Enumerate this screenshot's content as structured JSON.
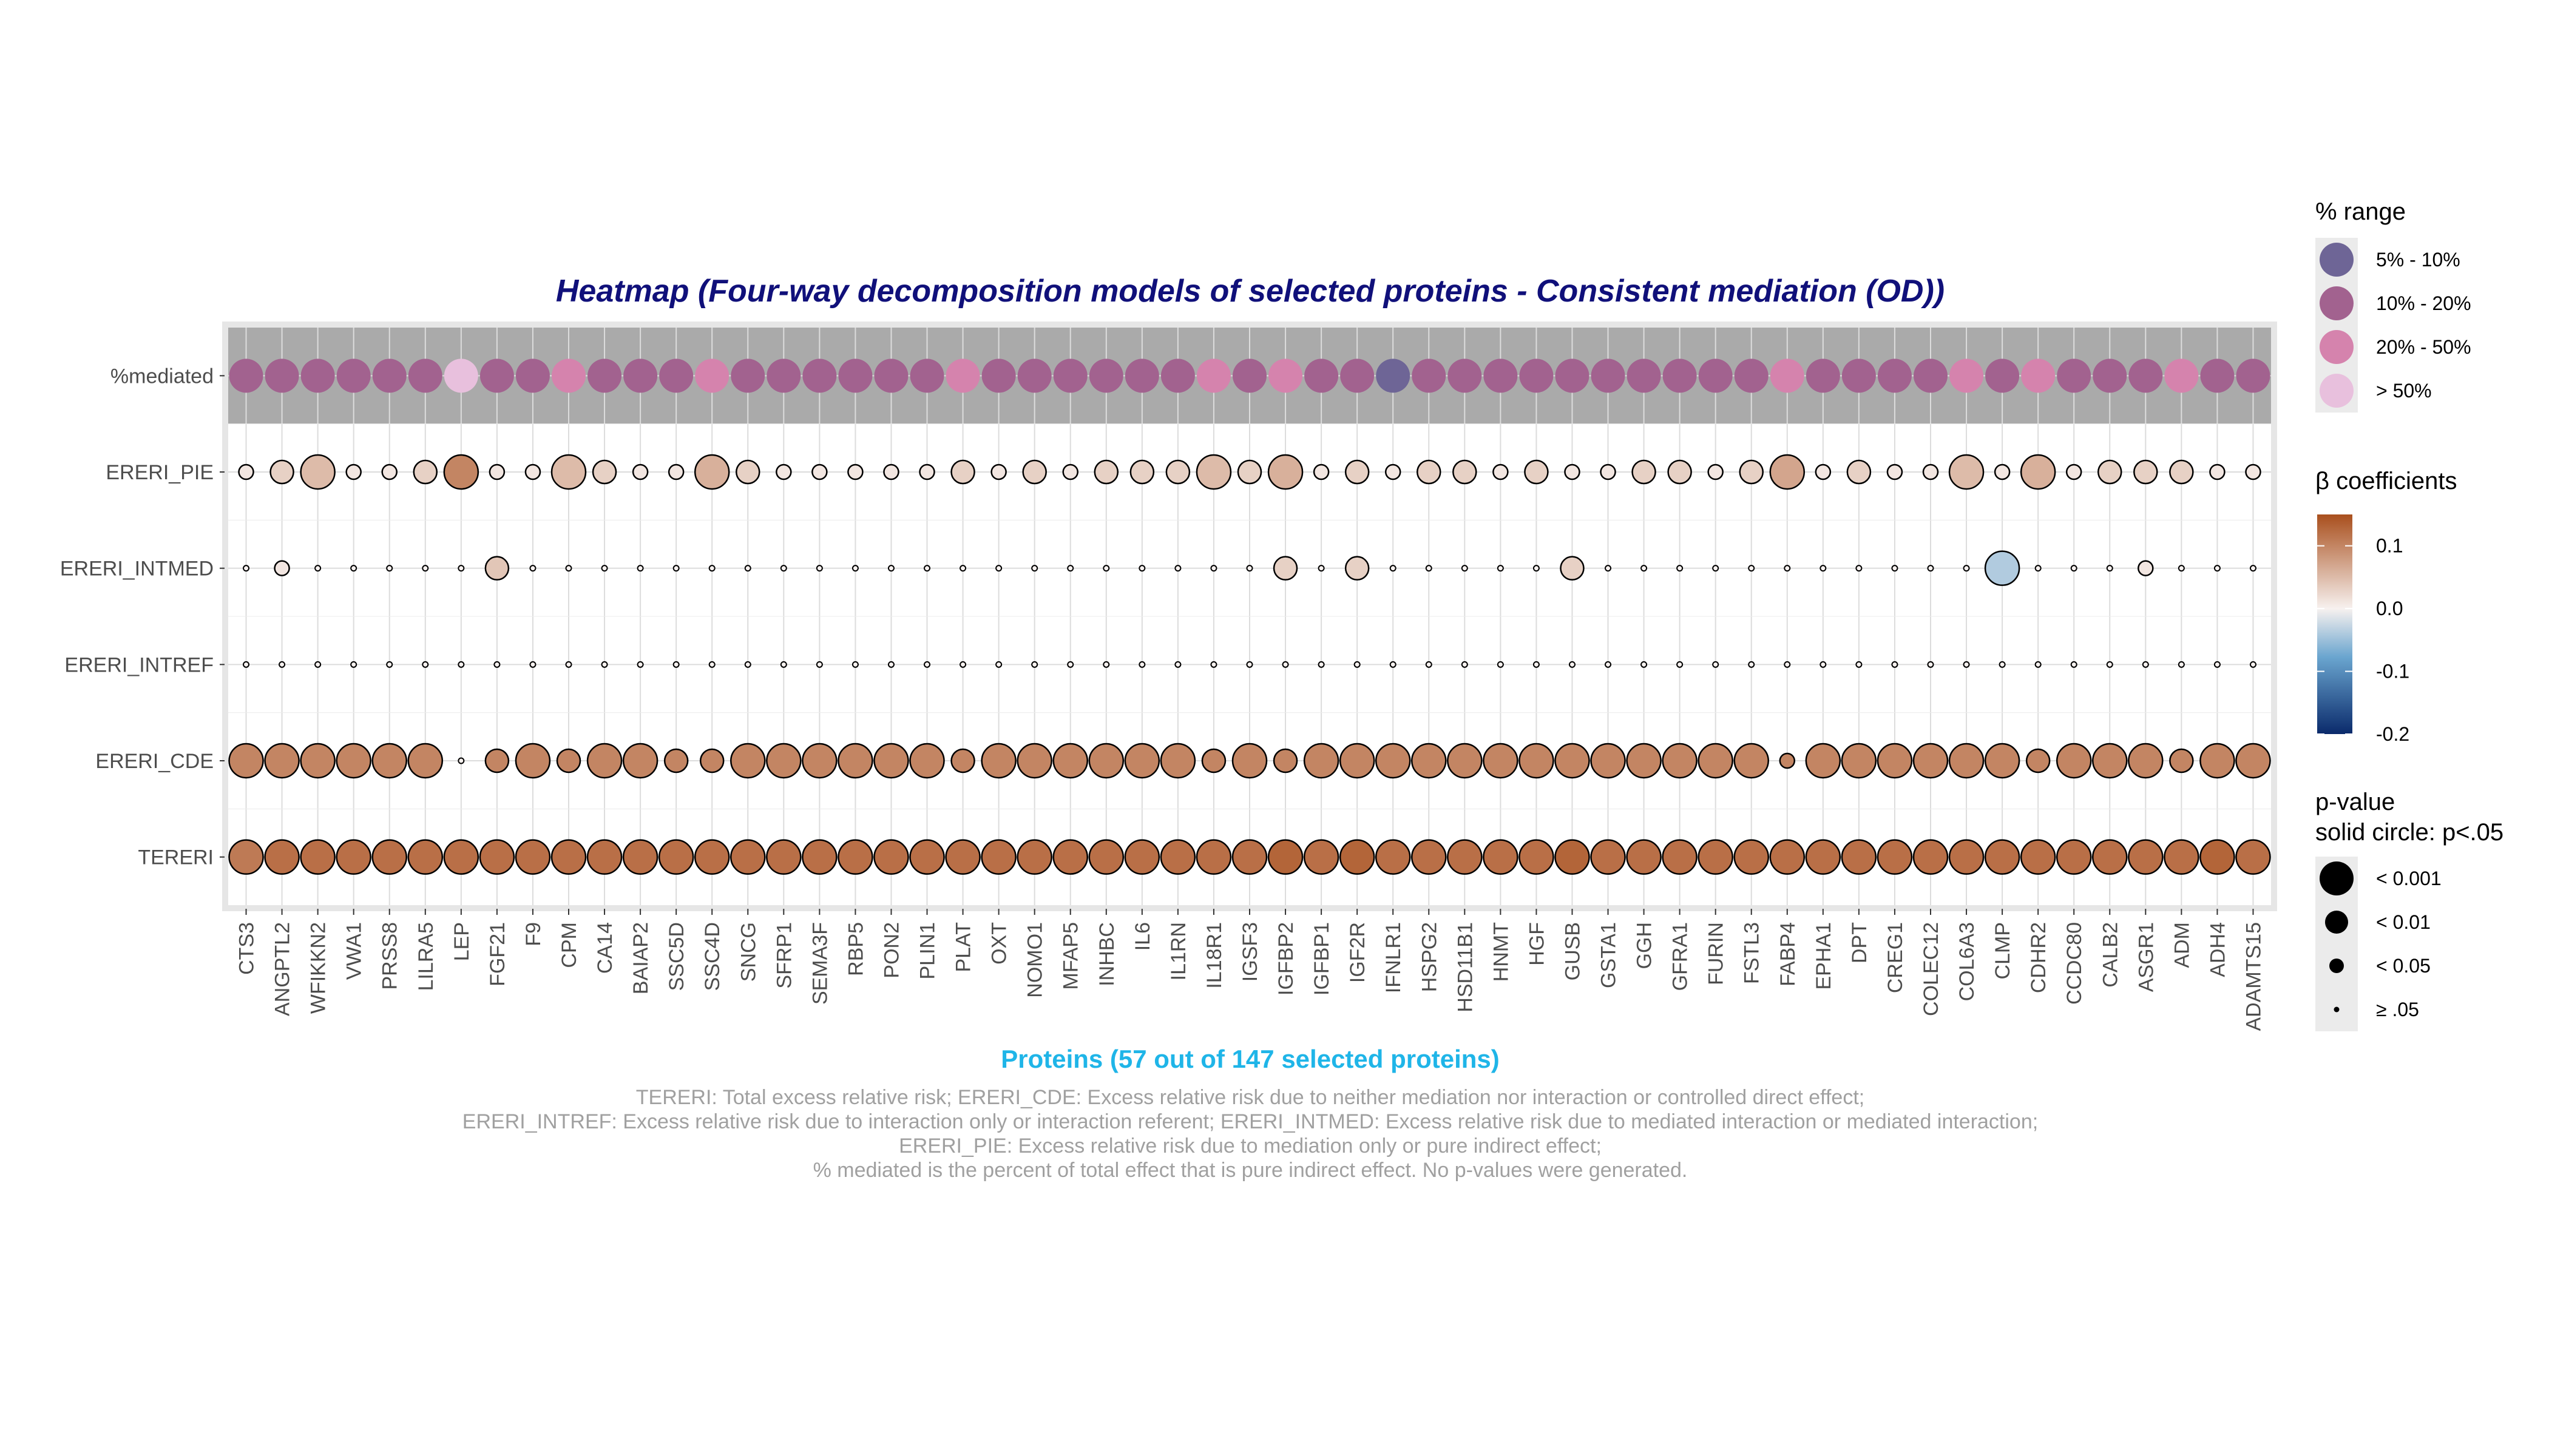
{
  "chart_data": {
    "type": "heatmap",
    "title": "Heatmap (Four-way decomposition models of selected proteins - Consistent mediation (OD))",
    "xlabel": "Proteins (57 out of 147 selected proteins)",
    "caption": [
      "TERERI: Total excess relative risk; ERERI_CDE: Excess relative risk due to neither mediation nor interaction or controlled direct effect;",
      "ERERI_INTREF: Excess relative risk due to interaction only or interaction referent; ERERI_INTMED: Excess relative risk due to mediated interaction or mediated interaction;",
      "ERERI_PIE: Excess relative risk due to mediation only or pure indirect effect;",
      "% mediated is the percent of total effect that is pure indirect effect. No p-values were generated."
    ],
    "rows": [
      "%mediated",
      "ERERI_PIE",
      "ERERI_INTMED",
      "ERERI_INTREF",
      "ERERI_CDE",
      "TERERI"
    ],
    "proteins": [
      "CTS3",
      "ANGPTL2",
      "WFIKKN2",
      "VWA1",
      "PRSS8",
      "LILRA5",
      "LEP",
      "FGF21",
      "F9",
      "CPM",
      "CA14",
      "BAIAP2",
      "SSC5D",
      "SSC4D",
      "SNCG",
      "SFRP1",
      "SEMA3F",
      "RBP5",
      "PON2",
      "PLIN1",
      "PLAT",
      "OXT",
      "NOMO1",
      "MFAP5",
      "INHBC",
      "IL6",
      "IL1RN",
      "IL18R1",
      "IGSF3",
      "IGFBP2",
      "IGFBP1",
      "IGF2R",
      "IFNLR1",
      "HSPG2",
      "HSD11B1",
      "HNMT",
      "HGF",
      "GUSB",
      "GSTA1",
      "GGH",
      "GFRA1",
      "FURIN",
      "FSTL3",
      "FABP4",
      "EPHA1",
      "DPT",
      "CREG1",
      "COLEC12",
      "COL6A3",
      "CLMP",
      "CDHR2",
      "CCDC80",
      "CALB2",
      "ASGR1",
      "ADM",
      "ADH4",
      "ADAMTS15"
    ],
    "pct_mediated_range": [
      "10% - 20%",
      "10% - 20%",
      "10% - 20%",
      "10% - 20%",
      "10% - 20%",
      "10% - 20%",
      "> 50%",
      "10% - 20%",
      "10% - 20%",
      "20% - 50%",
      "10% - 20%",
      "10% - 20%",
      "10% - 20%",
      "20% - 50%",
      "10% - 20%",
      "10% - 20%",
      "10% - 20%",
      "10% - 20%",
      "10% - 20%",
      "10% - 20%",
      "20% - 50%",
      "10% - 20%",
      "10% - 20%",
      "10% - 20%",
      "10% - 20%",
      "10% - 20%",
      "10% - 20%",
      "20% - 50%",
      "10% - 20%",
      "20% - 50%",
      "10% - 20%",
      "10% - 20%",
      "5% - 10%",
      "10% - 20%",
      "10% - 20%",
      "10% - 20%",
      "10% - 20%",
      "10% - 20%",
      "10% - 20%",
      "10% - 20%",
      "10% - 20%",
      "10% - 20%",
      "10% - 20%",
      "20% - 50%",
      "10% - 20%",
      "10% - 20%",
      "10% - 20%",
      "10% - 20%",
      "20% - 50%",
      "10% - 20%",
      "20% - 50%",
      "10% - 20%",
      "10% - 20%",
      "10% - 20%",
      "20% - 50%",
      "10% - 20%",
      "10% - 20%"
    ],
    "beta": {
      "ERERI_PIE": [
        0.01,
        0.03,
        0.05,
        0.01,
        0.01,
        0.03,
        0.1,
        0.01,
        0.01,
        0.05,
        0.03,
        0.01,
        0.01,
        0.06,
        0.03,
        0.01,
        0.01,
        0.01,
        0.01,
        0.01,
        0.03,
        0.01,
        0.03,
        0.01,
        0.03,
        0.03,
        0.03,
        0.05,
        0.03,
        0.06,
        0.01,
        0.03,
        0.01,
        0.03,
        0.03,
        0.01,
        0.03,
        0.01,
        0.01,
        0.03,
        0.03,
        0.01,
        0.03,
        0.07,
        0.01,
        0.03,
        0.01,
        0.01,
        0.05,
        0.01,
        0.06,
        0.01,
        0.03,
        0.03,
        0.03,
        0.01,
        0.01
      ],
      "ERERI_INTMED": [
        0,
        0.01,
        0,
        0,
        0,
        0,
        0,
        0.04,
        0,
        0,
        0,
        0,
        0,
        0,
        0,
        0,
        0,
        0,
        0,
        0,
        0,
        0,
        0,
        0,
        0,
        0,
        0,
        0,
        0,
        0.03,
        0,
        0.03,
        0,
        0,
        0,
        0,
        0,
        0.03,
        0,
        0,
        0,
        0,
        0,
        0,
        0,
        0,
        0,
        0,
        0,
        -0.05,
        0,
        0,
        0,
        0.01,
        0,
        0,
        0
      ],
      "ERERI_INTREF": [
        0,
        0,
        0,
        0,
        0,
        0,
        0,
        0,
        0,
        0,
        0,
        0,
        0,
        0,
        0,
        0,
        0,
        0,
        0,
        0,
        0,
        0,
        0,
        0,
        0,
        0,
        0,
        0,
        0,
        0,
        0,
        0,
        0,
        0,
        0,
        0,
        0,
        0,
        0,
        0,
        0,
        0,
        0,
        0,
        0,
        0,
        0,
        0,
        0,
        0,
        0,
        0,
        0,
        0,
        0,
        0,
        0
      ],
      "ERERI_CDE": [
        0.1,
        0.1,
        0.1,
        0.1,
        0.1,
        0.1,
        0,
        0.1,
        0.1,
        0.1,
        0.1,
        0.1,
        0.1,
        0.1,
        0.1,
        0.1,
        0.1,
        0.1,
        0.1,
        0.1,
        0.1,
        0.1,
        0.1,
        0.1,
        0.1,
        0.1,
        0.1,
        0.1,
        0.1,
        0.1,
        0.1,
        0.1,
        0.1,
        0.1,
        0.1,
        0.1,
        0.1,
        0.1,
        0.1,
        0.1,
        0.1,
        0.1,
        0.1,
        0.1,
        0.1,
        0.1,
        0.1,
        0.1,
        0.1,
        0.1,
        0.1,
        0.1,
        0.1,
        0.1,
        0.1,
        0.1,
        0.1
      ],
      "TERERI": [
        0.11,
        0.12,
        0.12,
        0.12,
        0.12,
        0.12,
        0.12,
        0.12,
        0.12,
        0.12,
        0.12,
        0.12,
        0.12,
        0.12,
        0.12,
        0.12,
        0.12,
        0.12,
        0.12,
        0.12,
        0.12,
        0.12,
        0.12,
        0.12,
        0.12,
        0.12,
        0.12,
        0.12,
        0.12,
        0.13,
        0.12,
        0.13,
        0.12,
        0.12,
        0.12,
        0.12,
        0.12,
        0.13,
        0.12,
        0.12,
        0.12,
        0.12,
        0.12,
        0.12,
        0.12,
        0.12,
        0.12,
        0.12,
        0.12,
        0.12,
        0.12,
        0.12,
        0.12,
        0.12,
        0.12,
        0.13,
        0.12
      ]
    },
    "pvalue_category": {
      "ERERI_PIE": [
        "< 0.05",
        "< 0.01",
        "< 0.001",
        "< 0.05",
        "< 0.05",
        "< 0.01",
        "< 0.001",
        "< 0.05",
        "< 0.05",
        "< 0.001",
        "< 0.01",
        "< 0.05",
        "< 0.05",
        "< 0.001",
        "< 0.01",
        "< 0.05",
        "< 0.05",
        "< 0.05",
        "< 0.05",
        "< 0.05",
        "< 0.01",
        "< 0.05",
        "< 0.01",
        "< 0.05",
        "< 0.01",
        "< 0.01",
        "< 0.01",
        "< 0.001",
        "< 0.01",
        "< 0.001",
        "< 0.05",
        "< 0.01",
        "< 0.05",
        "< 0.01",
        "< 0.01",
        "< 0.05",
        "< 0.01",
        "< 0.05",
        "< 0.05",
        "< 0.01",
        "< 0.01",
        "< 0.05",
        "< 0.01",
        "< 0.001",
        "< 0.05",
        "< 0.01",
        "< 0.05",
        "< 0.05",
        "< 0.001",
        "< 0.05",
        "< 0.001",
        "< 0.05",
        "< 0.01",
        "< 0.01",
        "< 0.01",
        "< 0.05",
        "< 0.05"
      ],
      "ERERI_INTMED": [
        "≥ .05",
        "< 0.05",
        "≥ .05",
        "≥ .05",
        "≥ .05",
        "≥ .05",
        "≥ .05",
        "< 0.01",
        "≥ .05",
        "≥ .05",
        "≥ .05",
        "≥ .05",
        "≥ .05",
        "≥ .05",
        "≥ .05",
        "≥ .05",
        "≥ .05",
        "≥ .05",
        "≥ .05",
        "≥ .05",
        "≥ .05",
        "≥ .05",
        "≥ .05",
        "≥ .05",
        "≥ .05",
        "≥ .05",
        "≥ .05",
        "≥ .05",
        "≥ .05",
        "< 0.01",
        "≥ .05",
        "< 0.01",
        "≥ .05",
        "≥ .05",
        "≥ .05",
        "≥ .05",
        "≥ .05",
        "< 0.01",
        "≥ .05",
        "≥ .05",
        "≥ .05",
        "≥ .05",
        "≥ .05",
        "≥ .05",
        "≥ .05",
        "≥ .05",
        "≥ .05",
        "≥ .05",
        "≥ .05",
        "< 0.001",
        "≥ .05",
        "≥ .05",
        "≥ .05",
        "< 0.05",
        "≥ .05",
        "≥ .05",
        "≥ .05"
      ],
      "ERERI_INTREF": [
        "≥ .05",
        "≥ .05",
        "≥ .05",
        "≥ .05",
        "≥ .05",
        "≥ .05",
        "≥ .05",
        "≥ .05",
        "≥ .05",
        "≥ .05",
        "≥ .05",
        "≥ .05",
        "≥ .05",
        "≥ .05",
        "≥ .05",
        "≥ .05",
        "≥ .05",
        "≥ .05",
        "≥ .05",
        "≥ .05",
        "≥ .05",
        "≥ .05",
        "≥ .05",
        "≥ .05",
        "≥ .05",
        "≥ .05",
        "≥ .05",
        "≥ .05",
        "≥ .05",
        "≥ .05",
        "≥ .05",
        "≥ .05",
        "≥ .05",
        "≥ .05",
        "≥ .05",
        "≥ .05",
        "≥ .05",
        "≥ .05",
        "≥ .05",
        "≥ .05",
        "≥ .05",
        "≥ .05",
        "≥ .05",
        "≥ .05",
        "≥ .05",
        "≥ .05",
        "≥ .05",
        "≥ .05",
        "≥ .05",
        "≥ .05",
        "≥ .05",
        "≥ .05",
        "≥ .05",
        "≥ .05",
        "≥ .05",
        "≥ .05",
        "≥ .05"
      ],
      "ERERI_CDE": [
        "< 0.001",
        "< 0.001",
        "< 0.001",
        "< 0.001",
        "< 0.001",
        "< 0.001",
        "≥ .05",
        "< 0.01",
        "< 0.001",
        "< 0.01",
        "< 0.001",
        "< 0.001",
        "< 0.01",
        "< 0.01",
        "< 0.001",
        "< 0.001",
        "< 0.001",
        "< 0.001",
        "< 0.001",
        "< 0.001",
        "< 0.01",
        "< 0.001",
        "< 0.001",
        "< 0.001",
        "< 0.001",
        "< 0.001",
        "< 0.001",
        "< 0.01",
        "< 0.001",
        "< 0.01",
        "< 0.001",
        "< 0.001",
        "< 0.001",
        "< 0.001",
        "< 0.001",
        "< 0.001",
        "< 0.001",
        "< 0.001",
        "< 0.001",
        "< 0.001",
        "< 0.001",
        "< 0.001",
        "< 0.001",
        "< 0.05",
        "< 0.001",
        "< 0.001",
        "< 0.001",
        "< 0.001",
        "< 0.001",
        "< 0.001",
        "< 0.01",
        "< 0.001",
        "< 0.001",
        "< 0.001",
        "< 0.01",
        "< 0.001",
        "< 0.001"
      ],
      "TERERI": [
        "< 0.001",
        "< 0.001",
        "< 0.001",
        "< 0.001",
        "< 0.001",
        "< 0.001",
        "< 0.001",
        "< 0.001",
        "< 0.001",
        "< 0.001",
        "< 0.001",
        "< 0.001",
        "< 0.001",
        "< 0.001",
        "< 0.001",
        "< 0.001",
        "< 0.001",
        "< 0.001",
        "< 0.001",
        "< 0.001",
        "< 0.001",
        "< 0.001",
        "< 0.001",
        "< 0.001",
        "< 0.001",
        "< 0.001",
        "< 0.001",
        "< 0.001",
        "< 0.001",
        "< 0.001",
        "< 0.001",
        "< 0.001",
        "< 0.001",
        "< 0.001",
        "< 0.001",
        "< 0.001",
        "< 0.001",
        "< 0.001",
        "< 0.001",
        "< 0.001",
        "< 0.001",
        "< 0.001",
        "< 0.001",
        "< 0.001",
        "< 0.001",
        "< 0.001",
        "< 0.001",
        "< 0.001",
        "< 0.001",
        "< 0.001",
        "< 0.001",
        "< 0.001",
        "< 0.001",
        "< 0.001",
        "< 0.001",
        "< 0.001",
        "< 0.001"
      ]
    },
    "legend_range": {
      "title": "% range",
      "items": [
        {
          "label": "5% - 10%",
          "color": "#6e6596"
        },
        {
          "label": "10% - 20%",
          "color": "#a2628f"
        },
        {
          "label": "20% - 50%",
          "color": "#d583ad"
        },
        {
          "label": "> 50%",
          "color": "#e8c0dd"
        }
      ]
    },
    "legend_beta": {
      "title": "β coefficients",
      "ticks": [
        "0.1",
        "0.0",
        "-0.1",
        "-0.2"
      ],
      "tick_values": [
        0.1,
        0,
        -0.1,
        -0.2
      ],
      "limits": [
        -0.2,
        0.15
      ],
      "colors": {
        "high": "#a94f1d",
        "mid": "#f7f1ef",
        "low": "#0a2a6b"
      }
    },
    "legend_p": {
      "title": "p-value",
      "subtitle": "solid circle: p<.05",
      "items": [
        "< 0.001",
        "< 0.01",
        "< 0.05",
        "≥ .05"
      ]
    },
    "colors": {
      "title": "#10107a",
      "xlabel": "#1fb5e8",
      "caption": "#a0a0a0",
      "panel_bg": "#ffffff",
      "mediated_strip": "#aaaaaa",
      "grid": "#dcdcdc",
      "frame": "#e6e6e6",
      "legend_key_bg": "#ebebeb"
    },
    "legend_placement": "right"
  }
}
